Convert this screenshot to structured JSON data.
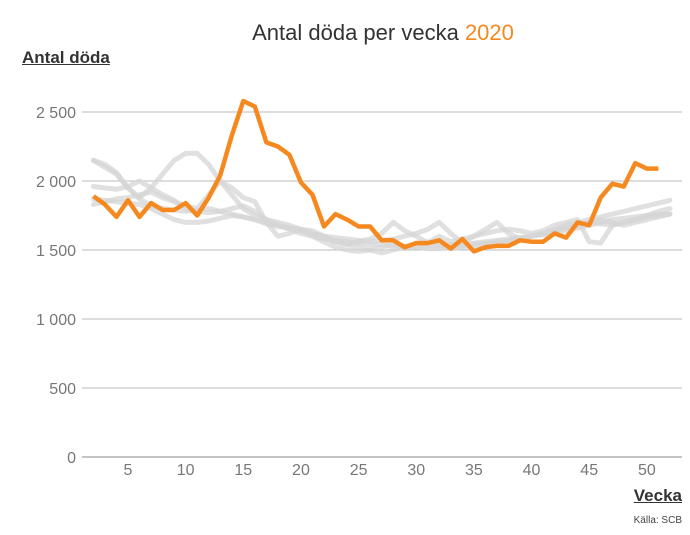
{
  "chart_data": {
    "type": "line",
    "title": "Antal döda per vecka",
    "title_highlight": "2020",
    "ylabel": "Antal döda",
    "xlabel": "Vecka",
    "source": "Källa: SCB",
    "ylim": [
      0,
      2700
    ],
    "xlim": [
      1,
      53
    ],
    "yticks": [
      0,
      500,
      1000,
      1500,
      2000,
      2500
    ],
    "ytick_labels": [
      "0",
      "500",
      "1 000",
      "1 500",
      "2 000",
      "2 500"
    ],
    "xticks": [
      5,
      10,
      15,
      20,
      25,
      30,
      35,
      40,
      45,
      50
    ],
    "xtick_labels": [
      "5",
      "10",
      "15",
      "20",
      "25",
      "30",
      "35",
      "40",
      "45",
      "50"
    ],
    "grid": true,
    "colors": {
      "highlight": "#f5891f",
      "background_series": "#d6d6d6",
      "grid": "#bbbbbb"
    },
    "highlight_series": {
      "name": "2020",
      "x_start": 2,
      "values": [
        1890,
        1830,
        1740,
        1860,
        1740,
        1840,
        1790,
        1790,
        1840,
        1750,
        1880,
        2040,
        2330,
        2580,
        2540,
        2280,
        2250,
        2190,
        1990,
        1900,
        1670,
        1760,
        1720,
        1670,
        1670,
        1570,
        1570,
        1520,
        1550,
        1550,
        1570,
        1510,
        1580,
        1490,
        1520,
        1530,
        1530,
        1570,
        1560,
        1560,
        1620,
        1590,
        1700,
        1680,
        1880,
        1980,
        1960,
        2130,
        2090,
        2090
      ]
    },
    "background_series": [
      {
        "x_start": 2,
        "values": [
          2150,
          2100,
          2050,
          1950,
          1880,
          1950,
          2050,
          2150,
          2200,
          2200,
          2120,
          2000,
          1900,
          1800,
          1750,
          1720,
          1700,
          1680,
          1650,
          1600,
          1560,
          1520,
          1500,
          1490,
          1500,
          1520,
          1540,
          1530,
          1520,
          1510,
          1510,
          1520,
          1530,
          1540,
          1550,
          1560,
          1570,
          1580,
          1600,
          1620,
          1650,
          1680,
          1700,
          1720,
          1740,
          1760,
          1780,
          1800,
          1820,
          1840,
          1860
        ]
      },
      {
        "x_start": 2,
        "values": [
          2150,
          2120,
          2060,
          1950,
          1870,
          1820,
          1800,
          1790,
          1780,
          1790,
          1800,
          1780,
          1760,
          1740,
          1720,
          1700,
          1680,
          1650,
          1620,
          1600,
          1580,
          1570,
          1560,
          1550,
          1540,
          1540,
          1530,
          1520,
          1520,
          1530,
          1530,
          1540,
          1540,
          1550,
          1560,
          1570,
          1580,
          1590,
          1600,
          1610,
          1620,
          1640,
          1660,
          1680,
          1700,
          1720,
          1730,
          1740,
          1750,
          1760,
          1760
        ]
      },
      {
        "x_start": 2,
        "values": [
          1960,
          1950,
          1940,
          1960,
          2000,
          1950,
          1900,
          1860,
          1800,
          1780,
          1770,
          1780,
          1800,
          1820,
          1780,
          1720,
          1680,
          1660,
          1640,
          1620,
          1600,
          1590,
          1580,
          1570,
          1560,
          1570,
          1580,
          1600,
          1620,
          1650,
          1700,
          1620,
          1550,
          1600,
          1650,
          1700,
          1620,
          1580,
          1600,
          1620,
          1640,
          1660,
          1680,
          1700,
          1720,
          1700,
          1680,
          1700,
          1720,
          1740,
          1760
        ]
      },
      {
        "x_start": 2,
        "values": [
          1830,
          1850,
          1870,
          1880,
          1900,
          1920,
          1880,
          1850,
          1820,
          1800,
          1900,
          2000,
          1950,
          1880,
          1850,
          1700,
          1600,
          1620,
          1650,
          1640,
          1600,
          1560,
          1540,
          1560,
          1580,
          1620,
          1700,
          1640,
          1600,
          1550,
          1600,
          1560,
          1580,
          1600,
          1620,
          1640,
          1650,
          1640,
          1620,
          1640,
          1680,
          1700,
          1720,
          1560,
          1550,
          1680,
          1700,
          1720,
          1750,
          1780,
          1800
        ]
      },
      {
        "x_start": 2,
        "values": [
          1870,
          1860,
          1850,
          1840,
          1830,
          1800,
          1760,
          1720,
          1700,
          1700,
          1710,
          1730,
          1750,
          1740,
          1720,
          1690,
          1670,
          1660,
          1650,
          1620,
          1590,
          1560,
          1540,
          1520,
          1500,
          1480,
          1500,
          1520,
          1550,
          1560,
          1540,
          1510,
          1520,
          1530,
          1540,
          1550,
          1560,
          1580,
          1600,
          1620,
          1640,
          1660,
          1680,
          1700,
          1690,
          1680,
          1700,
          1720,
          1740,
          1750,
          1760
        ]
      }
    ]
  }
}
